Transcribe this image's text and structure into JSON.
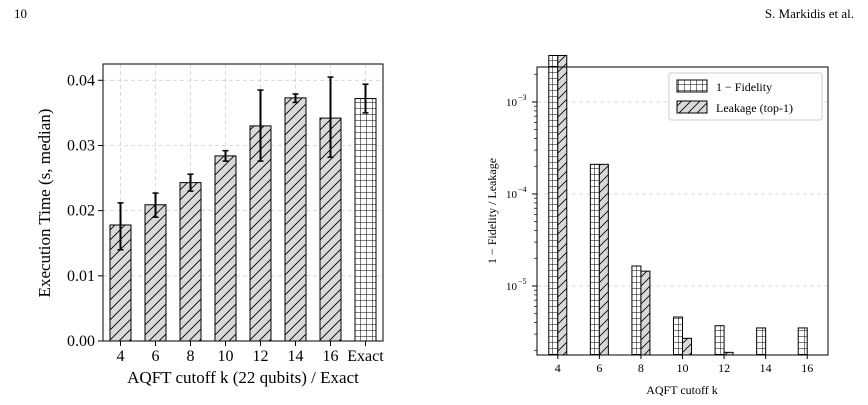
{
  "header": {
    "page_number": "10",
    "running_head": "S. Markidis et al."
  },
  "colors": {
    "bar_fill": "#d9d9d9",
    "grid": "#d0d0d0",
    "stroke": "#000000"
  },
  "chart_data": [
    {
      "type": "bar",
      "title": "",
      "xlabel": "AQFT cutoff k (22 qubits) / Exact",
      "ylabel": "Execution Time (s, median)",
      "categories": [
        "4",
        "6",
        "8",
        "10",
        "12",
        "14",
        "16",
        "Exact"
      ],
      "values": [
        0.0178,
        0.0209,
        0.0243,
        0.0284,
        0.033,
        0.0373,
        0.0342,
        0.0372
      ],
      "error_low": [
        0.014,
        0.019,
        0.023,
        0.0276,
        0.0276,
        0.0366,
        0.0282,
        0.035
      ],
      "error_high": [
        0.0212,
        0.0227,
        0.0256,
        0.0292,
        0.0385,
        0.0379,
        0.0405,
        0.0394
      ],
      "hatch": [
        "diagonal",
        "diagonal",
        "diagonal",
        "diagonal",
        "diagonal",
        "diagonal",
        "diagonal",
        "grid"
      ],
      "ylim": [
        0,
        0.0425
      ],
      "yticks": [
        "0.00",
        "0.01",
        "0.02",
        "0.03",
        "0.04"
      ],
      "ytick_values": [
        0,
        0.01,
        0.02,
        0.03,
        0.04
      ],
      "grid": true
    },
    {
      "type": "bar",
      "title": "",
      "xlabel": "AQFT cutoff k",
      "ylabel": "1 − Fidelity / Leakage",
      "categories": [
        "4",
        "6",
        "8",
        "10",
        "12",
        "14",
        "16"
      ],
      "log_y": true,
      "ylim_exponent": [
        -5.75,
        -2.62
      ],
      "yticks": [
        {
          "base": "10",
          "exp": "−3",
          "value": -3
        },
        {
          "base": "10",
          "exp": "−4",
          "value": -4
        },
        {
          "base": "10",
          "exp": "−5",
          "value": -5
        }
      ],
      "series": [
        {
          "name": "1 − Fidelity",
          "hatch": "grid",
          "values": [
            0.0032,
            0.00021,
            1.65e-05,
            4.6e-06,
            3.7e-06,
            3.5e-06,
            3.5e-06
          ]
        },
        {
          "name": "Leakage (top-1)",
          "hatch": "diagonal",
          "values": [
            0.0032,
            0.00021,
            1.45e-05,
            2.7e-06,
            1.9e-06,
            1.7e-06,
            1.7e-06
          ]
        }
      ],
      "legend_position": "top-right",
      "grid": true
    }
  ]
}
